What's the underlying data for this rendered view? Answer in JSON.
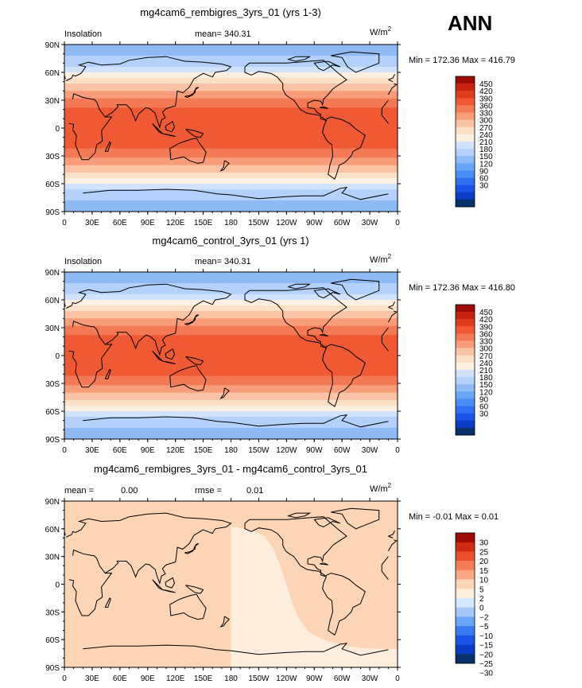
{
  "season": "ANN",
  "units_prefix": "W/m",
  "units_exp": "2",
  "coast_color": "#000000",
  "lat_ticks": [
    "90N",
    "60N",
    "30N",
    "0",
    "30S",
    "60S",
    "90S"
  ],
  "lon_ticks": [
    "0",
    "30E",
    "60E",
    "90E",
    "120E",
    "150E",
    "180",
    "150W",
    "120W",
    "90W",
    "60W",
    "30W",
    "0"
  ],
  "colors_main": [
    "#08306b",
    "#0a3cc4",
    "#1a53e6",
    "#3070f0",
    "#4a8df5",
    "#6ba5f7",
    "#8fbaf5",
    "#b3d1fa",
    "#d1e3fc",
    "#fdf0e1",
    "#fce0c8",
    "#fbc3a5",
    "#f89c7a",
    "#f47a56",
    "#ef5a35",
    "#e03d1c",
    "#c82210",
    "#9c0b04"
  ],
  "colors_diff": [
    "#08306b",
    "#0a3cc4",
    "#1a53e6",
    "#3a7af2",
    "#6ba5f7",
    "#a4c8f9",
    "#d6e8fc",
    "#fdeddd",
    "#fcd4b6",
    "#f9a883",
    "#f57e57",
    "#ea4f2b",
    "#cf2a12",
    "#9c0b04"
  ],
  "chart_data": [
    {
      "type": "heatmap",
      "title": "mg4cam6_rembigres_3yrs_01 (yrs 1-3)",
      "left_label": "Insolation",
      "stat_text": "mean=  340.31",
      "minmax_text": "Min = 172.36 Max = 416.79",
      "levels": [
        "450",
        "420",
        "390",
        "360",
        "330",
        "300",
        "270",
        "240",
        "210",
        "180",
        "150",
        "120",
        "90",
        "60",
        "30"
      ],
      "lat_profile": {
        "lat": [
          90,
          80,
          70,
          60,
          50,
          40,
          30,
          20,
          10,
          0,
          -10,
          -20,
          -30,
          -40,
          -50,
          -60,
          -70,
          -80,
          -90
        ],
        "values": [
          172,
          178,
          196,
          240,
          290,
          330,
          370,
          395,
          410,
          416,
          410,
          395,
          370,
          330,
          290,
          240,
          196,
          178,
          172
        ]
      },
      "xlim": [
        0,
        360
      ],
      "ylim": [
        -90,
        90
      ]
    },
    {
      "type": "heatmap",
      "title": "mg4cam6_control_3yrs_01 (yrs 1)",
      "left_label": "Insolation",
      "stat_text": "mean=  340.31",
      "minmax_text": "Min = 172.36 Max = 416.80",
      "levels": [
        "450",
        "420",
        "390",
        "360",
        "330",
        "300",
        "270",
        "240",
        "210",
        "180",
        "150",
        "120",
        "90",
        "60",
        "30"
      ],
      "lat_profile": {
        "lat": [
          90,
          80,
          70,
          60,
          50,
          40,
          30,
          20,
          10,
          0,
          -10,
          -20,
          -30,
          -40,
          -50,
          -60,
          -70,
          -80,
          -90
        ],
        "values": [
          172,
          178,
          196,
          240,
          290,
          330,
          370,
          395,
          410,
          416,
          410,
          395,
          370,
          330,
          290,
          240,
          196,
          178,
          172
        ]
      },
      "xlim": [
        0,
        360
      ],
      "ylim": [
        -90,
        90
      ]
    },
    {
      "type": "heatmap",
      "title": "mg4cam6_rembigres_3yrs_01 - mg4cam6_control_3yrs_01",
      "mean_label": "mean =",
      "mean_value": "0.00",
      "rmse_label": "rmse =",
      "rmse_value": "0.01",
      "minmax_text": "Min =   -0.01 Max =    0.01",
      "levels": [
        "30",
        "25",
        "20",
        "15",
        "10",
        "5",
        "2",
        "0",
        "−2",
        "−5",
        "−10",
        "−15",
        "−20",
        "−25",
        "−30"
      ],
      "background_value": 0.005,
      "negative_region_value": -0.005,
      "negative_region_boundary": [
        [
          180,
          63
        ],
        [
          204,
          58
        ],
        [
          216,
          52
        ],
        [
          226,
          38
        ],
        [
          234,
          18
        ],
        [
          240,
          0
        ],
        [
          246,
          -20
        ],
        [
          254,
          -38
        ],
        [
          264,
          -52
        ],
        [
          280,
          -60
        ],
        [
          300,
          -66
        ],
        [
          320,
          -69
        ],
        [
          340,
          -70
        ],
        [
          360,
          -70
        ]
      ],
      "xlim": [
        0,
        360
      ],
      "ylim": [
        -90,
        90
      ]
    }
  ]
}
